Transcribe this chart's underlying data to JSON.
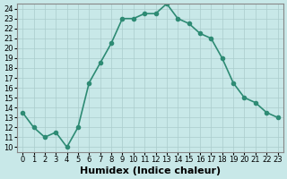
{
  "x": [
    0,
    1,
    2,
    3,
    4,
    5,
    6,
    7,
    8,
    9,
    10,
    11,
    12,
    13,
    14,
    15,
    16,
    17,
    18,
    19,
    20,
    21,
    22,
    23
  ],
  "y": [
    13.5,
    12.0,
    11.0,
    11.5,
    10.0,
    12.0,
    16.5,
    18.5,
    20.5,
    23.0,
    23.0,
    23.5,
    23.5,
    24.5,
    23.0,
    22.5,
    21.5,
    21.0,
    19.0,
    16.5,
    15.0,
    14.5,
    13.5,
    13.0
  ],
  "line_color": "#2e8b74",
  "marker": "o",
  "markersize": 3,
  "linewidth": 1.2,
  "xlabel": "Humidex (Indice chaleur)",
  "xlim": [
    -0.5,
    23.5
  ],
  "ylim": [
    9.5,
    24.5
  ],
  "yticks": [
    10,
    11,
    12,
    13,
    14,
    15,
    16,
    17,
    18,
    19,
    20,
    21,
    22,
    23,
    24
  ],
  "xticks": [
    0,
    1,
    2,
    3,
    4,
    5,
    6,
    7,
    8,
    9,
    10,
    11,
    12,
    13,
    14,
    15,
    16,
    17,
    18,
    19,
    20,
    21,
    22,
    23
  ],
  "bg_color": "#c8e8e8",
  "grid_color": "#aacccc",
  "xlabel_fontsize": 8,
  "tick_fontsize": 6
}
